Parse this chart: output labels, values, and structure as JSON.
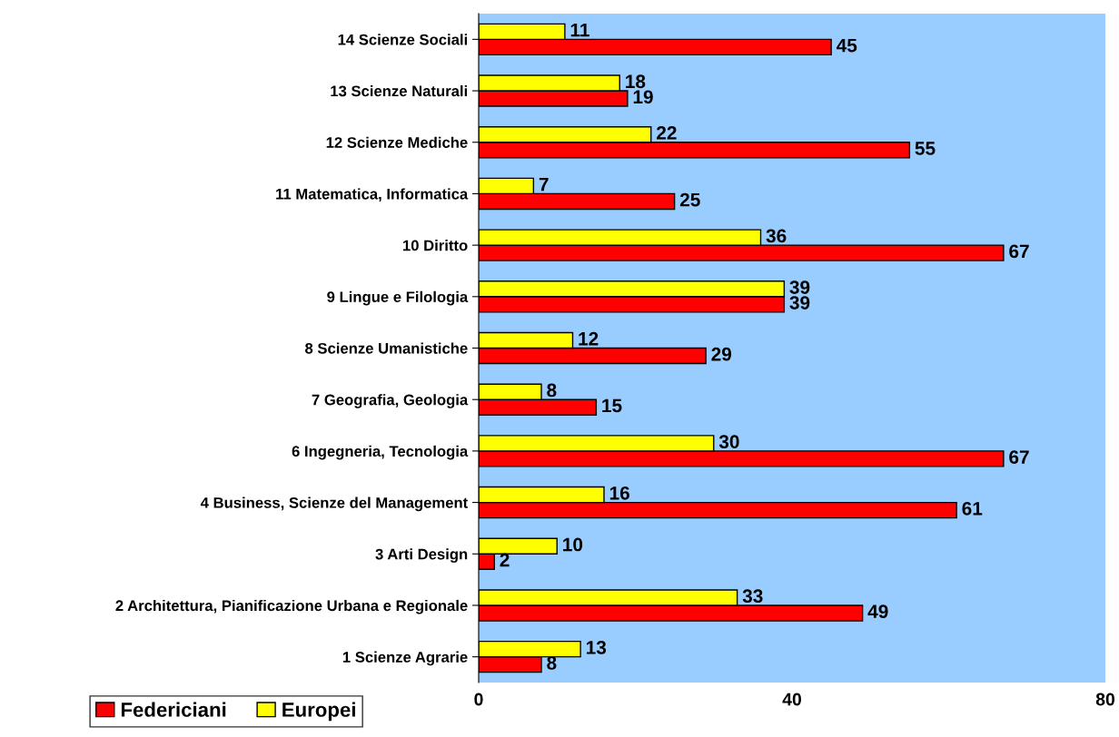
{
  "chart_data": {
    "type": "bar",
    "orientation": "horizontal",
    "categories": [
      "14 Scienze Sociali",
      "13 Scienze Naturali",
      "12 Scienze Mediche",
      "11 Matematica, Informatica",
      "10 Diritto",
      "9 Lingue e Filologia",
      "8 Scienze Umanistiche",
      "7 Geografia, Geologia",
      "6 Ingegneria, Tecnologia",
      "4 Business, Scienze del Management",
      "3 Arti Design",
      "2 Architettura, Pianificazione Urbana e Regionale",
      "1 Scienze Agrarie"
    ],
    "series": [
      {
        "name": "Federiciani",
        "color": "#ff0000",
        "values": [
          45,
          19,
          55,
          25,
          67,
          39,
          29,
          15,
          67,
          61,
          2,
          49,
          8
        ]
      },
      {
        "name": "Europei",
        "color": "#ffff00",
        "values": [
          11,
          18,
          22,
          7,
          36,
          39,
          12,
          8,
          30,
          16,
          10,
          33,
          13
        ]
      }
    ],
    "xlim": [
      0,
      80
    ],
    "xticks": [
      0,
      40,
      80
    ],
    "grid": false,
    "legend": "bottom left",
    "data_labels": true
  }
}
